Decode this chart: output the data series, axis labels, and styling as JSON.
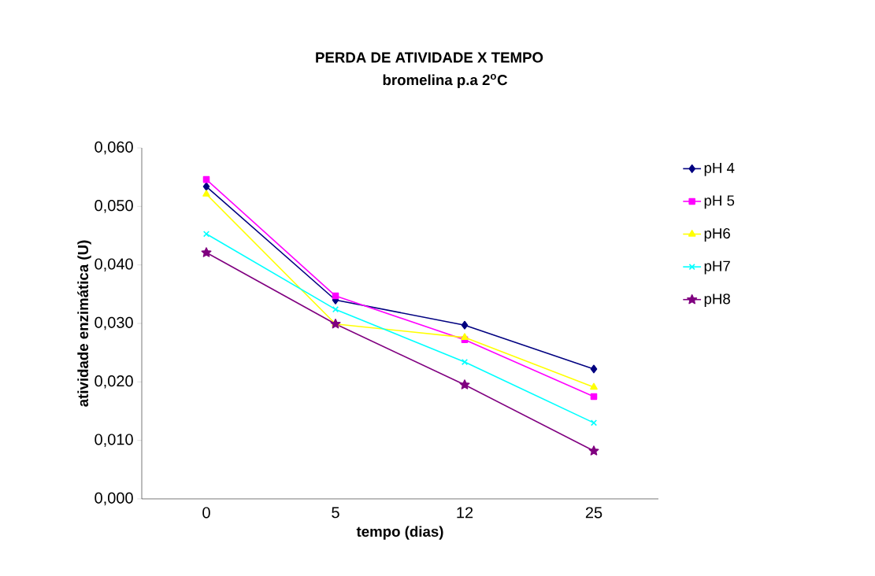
{
  "chart_data": {
    "type": "line",
    "title": "PERDA DE ATIVIDADE X TEMPO",
    "subtitle": "bromelina p.a 2$^{o}$C",
    "xlabel": "tempo (dias)",
    "ylabel": "atividade enzimática (U)",
    "categories": [
      "0",
      "5",
      "12",
      "25"
    ],
    "ylim": [
      0,
      0.06
    ],
    "yticks": [
      {
        "value": 0,
        "label": "0,000"
      },
      {
        "value": 0.01,
        "label": "0,010"
      },
      {
        "value": 0.02,
        "label": "0,020"
      },
      {
        "value": 0.03,
        "label": "0,030"
      },
      {
        "value": 0.04,
        "label": "0,040"
      },
      {
        "value": 0.05,
        "label": "0,050"
      },
      {
        "value": 0.06,
        "label": "0,060"
      }
    ],
    "grid": false,
    "legend": "right",
    "line_style": "solid",
    "series": [
      {
        "name": "pH 4",
        "color": "#000080",
        "marker": "diamond",
        "values": [
          0.0534,
          0.034,
          0.0297,
          0.0222
        ]
      },
      {
        "name": "pH 5",
        "color": "#ff00ff",
        "marker": "square",
        "values": [
          0.0546,
          0.0347,
          0.0272,
          0.0175
        ]
      },
      {
        "name": "pH6",
        "color": "#ffff00",
        "marker": "triangle",
        "values": [
          0.0521,
          0.0299,
          0.0276,
          0.0191
        ]
      },
      {
        "name": "pH7",
        "color": "#00ffff",
        "marker": "cross",
        "values": [
          0.0453,
          0.0324,
          0.0234,
          0.013
        ]
      },
      {
        "name": "pH8",
        "color": "#800080",
        "marker": "star",
        "values": [
          0.0421,
          0.0299,
          0.0195,
          0.0082
        ]
      }
    ]
  }
}
